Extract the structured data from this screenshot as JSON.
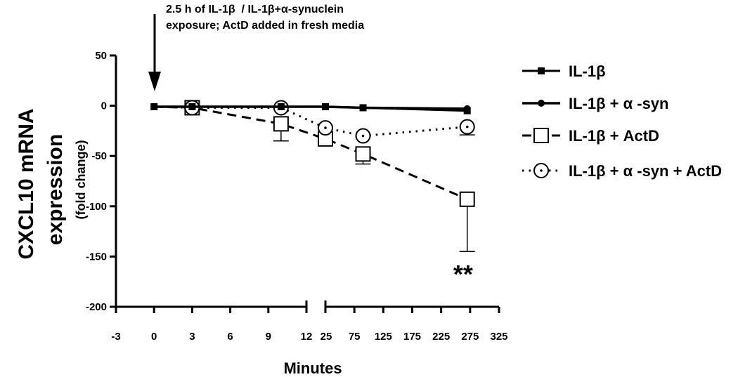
{
  "chart_data": {
    "type": "line",
    "annotation_lines": [
      "2.5 h of IL-1β  / IL-1β+α-synuclein",
      "exposure; ActD added in fresh media"
    ],
    "xlabel": "Minutes",
    "ylabel": "CXCL10 mRNA expression",
    "ylabel_sub": "(fold change)",
    "ylim": [
      -200,
      50
    ],
    "yticks": [
      50,
      0,
      -50,
      -100,
      -150,
      -200
    ],
    "x_segment_1": {
      "range": [
        -3,
        12
      ],
      "ticks": [
        -3,
        0,
        3,
        6,
        9,
        12
      ]
    },
    "x_segment_2": {
      "range": [
        25,
        325
      ],
      "ticks": [
        25,
        75,
        125,
        175,
        225,
        275,
        325
      ]
    },
    "significance_label": "**",
    "significance_at": {
      "x": 275,
      "y": -168
    },
    "series": [
      {
        "name": "IL-1β",
        "marker": "filled-square",
        "line": "solid",
        "points": [
          {
            "x": 0,
            "y": -1
          },
          {
            "x": 3,
            "y": -1
          },
          {
            "x": 10,
            "y": -1
          },
          {
            "x": 25,
            "y": -1
          },
          {
            "x": 90,
            "y": -2
          },
          {
            "x": 270,
            "y": -5
          }
        ]
      },
      {
        "name": "IL-1β + α -syn",
        "marker": "filled-circle",
        "line": "solid",
        "points": [
          {
            "x": 0,
            "y": -1
          },
          {
            "x": 3,
            "y": -1
          },
          {
            "x": 10,
            "y": -1
          },
          {
            "x": 25,
            "y": -1
          },
          {
            "x": 90,
            "y": -2
          },
          {
            "x": 270,
            "y": -3
          }
        ]
      },
      {
        "name": "IL-1β + ActD",
        "marker": "open-square",
        "line": "dashed",
        "points": [
          {
            "x": 0,
            "y": -1
          },
          {
            "x": 3,
            "y": -2,
            "err": 2
          },
          {
            "x": 10,
            "y": -18,
            "err": 17
          },
          {
            "x": 25,
            "y": -33,
            "err": 6
          },
          {
            "x": 90,
            "y": -48,
            "err": 10
          },
          {
            "x": 270,
            "y": -93,
            "err": 52
          }
        ]
      },
      {
        "name": "IL-1β + α -syn + ActD",
        "marker": "open-circle",
        "line": "dotted",
        "points": [
          {
            "x": 0,
            "y": -1
          },
          {
            "x": 3,
            "y": -2
          },
          {
            "x": 10,
            "y": -2
          },
          {
            "x": 25,
            "y": -22
          },
          {
            "x": 90,
            "y": -30
          },
          {
            "x": 270,
            "y": -21,
            "err": 8
          }
        ]
      }
    ]
  }
}
